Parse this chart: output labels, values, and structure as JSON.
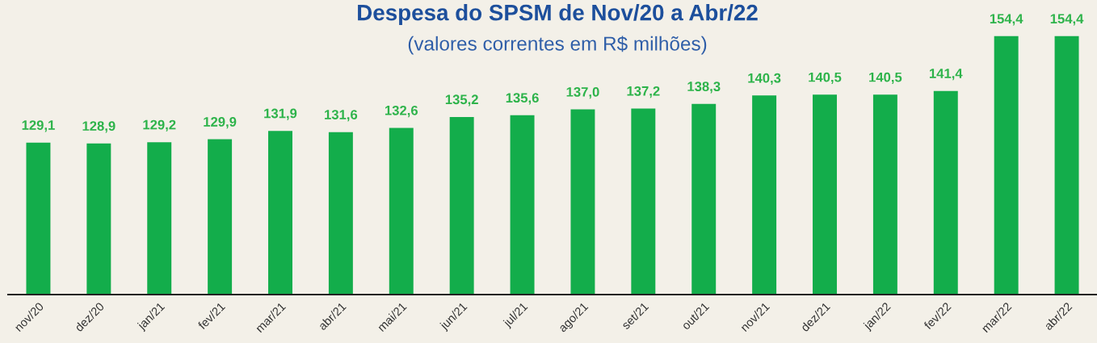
{
  "chart_data": {
    "type": "bar",
    "title": "Despesa do SPSM de Nov/20 a Abr/22",
    "subtitle": "(valores correntes em R$ milhões)",
    "categories": [
      "nov/20",
      "dez/20",
      "jan/21",
      "fev/21",
      "mar/21",
      "abr/21",
      "mai/21",
      "jun/21",
      "jul/21",
      "ago/21",
      "set/21",
      "out/21",
      "nov/21",
      "dez/21",
      "jan/22",
      "fev/22",
      "mar/22",
      "abr/22"
    ],
    "values": [
      129.1,
      128.9,
      129.2,
      129.9,
      131.9,
      131.6,
      132.6,
      135.2,
      135.6,
      137.0,
      137.2,
      138.3,
      140.3,
      140.5,
      140.5,
      141.4,
      154.4,
      154.4
    ],
    "value_labels": [
      "129,1",
      "128,9",
      "129,2",
      "129,9",
      "131,9",
      "131,6",
      "132,6",
      "135,2",
      "135,6",
      "137,0",
      "137,2",
      "138,3",
      "140,3",
      "140,5",
      "140,5",
      "141,4",
      "154,4",
      "154,4"
    ],
    "color": "#13ad4b",
    "ylim": [
      93,
      163
    ],
    "tick_labels": "x",
    "grid": false
  }
}
